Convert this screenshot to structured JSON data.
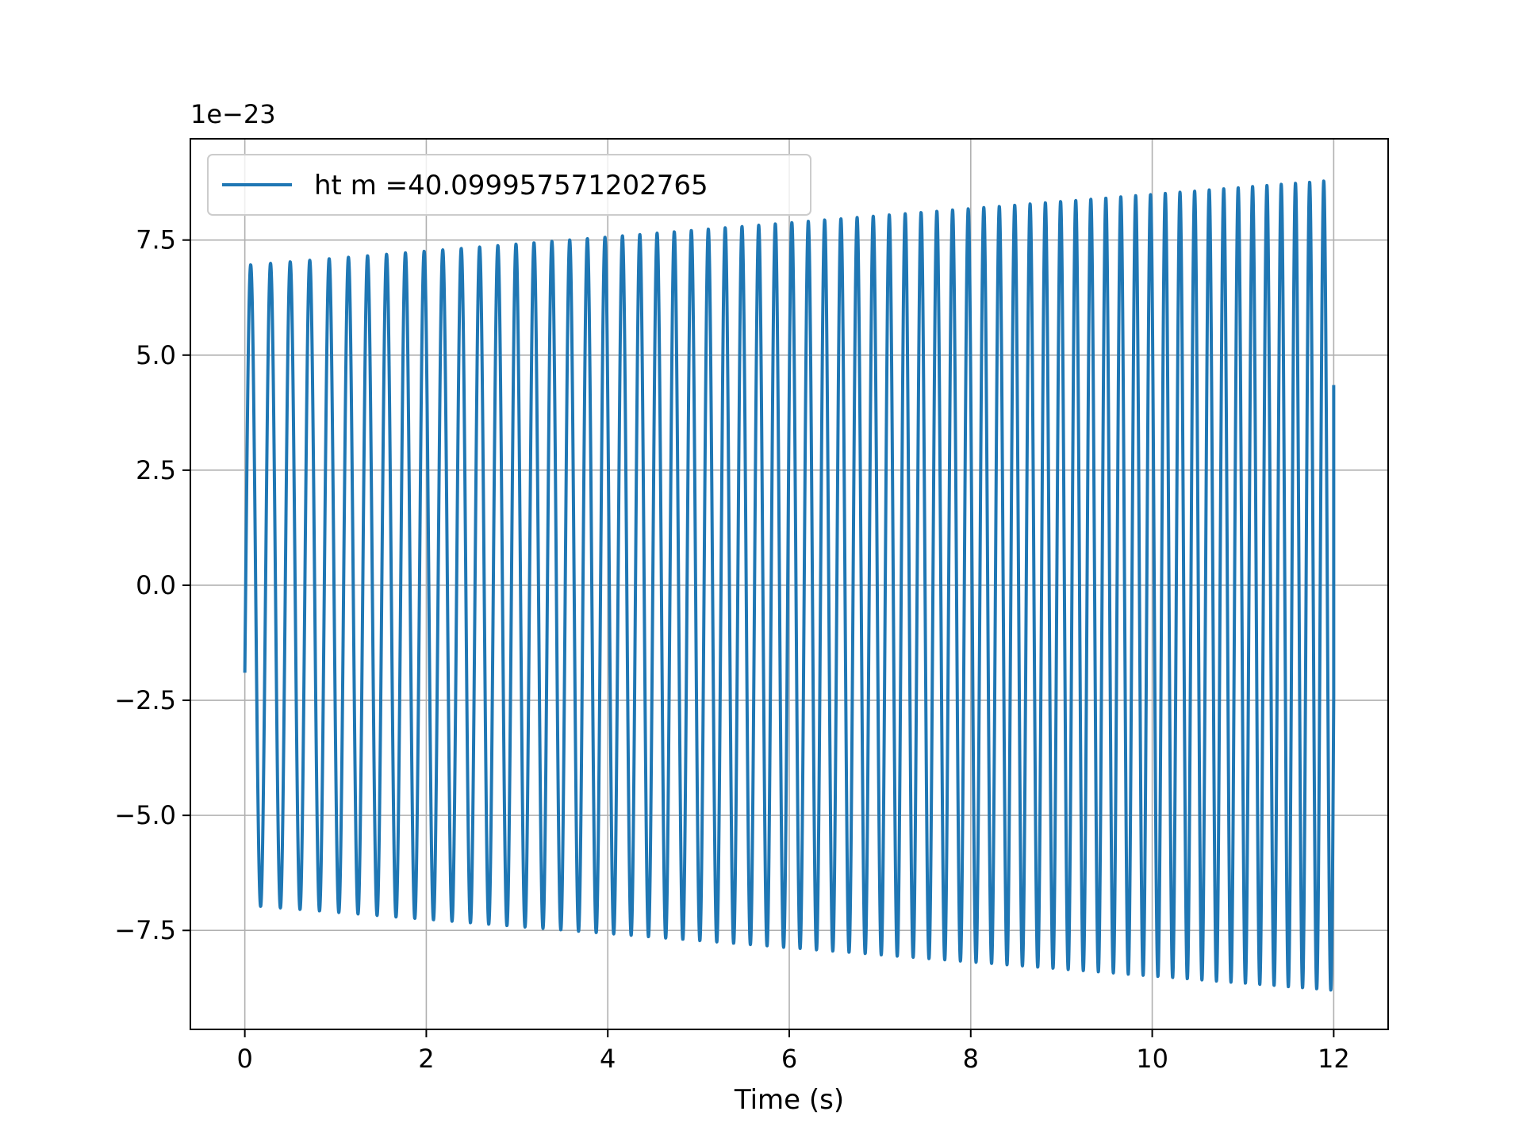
{
  "chart_data": {
    "type": "line",
    "title": "",
    "xlabel": "Time (s)",
    "ylabel": "",
    "y_offset_label": "1e−23",
    "xlim": [
      -0.6,
      12.6
    ],
    "ylim": [
      -9.65,
      9.7
    ],
    "x_ticks": [
      0,
      2,
      4,
      6,
      8,
      10,
      12
    ],
    "x_tick_labels": [
      "0",
      "2",
      "4",
      "6",
      "8",
      "10",
      "12"
    ],
    "y_ticks": [
      -7.5,
      -5.0,
      -2.5,
      0.0,
      2.5,
      5.0,
      7.5
    ],
    "y_tick_labels": [
      "−7.5",
      "−5.0",
      "−2.5",
      "0.0",
      "2.5",
      "5.0",
      "7.5"
    ],
    "grid": true,
    "legend_position": "top-left",
    "series": [
      {
        "name": "ht m =40.099957571202765",
        "color": "#1f77b4",
        "waveform": "chirp",
        "t_start": 0,
        "t_end": 12,
        "cycles": 66,
        "amplitude_start": 6.95,
        "amplitude_end": 8.8,
        "value_start": -1.9,
        "value_end": 4.35
      }
    ]
  }
}
